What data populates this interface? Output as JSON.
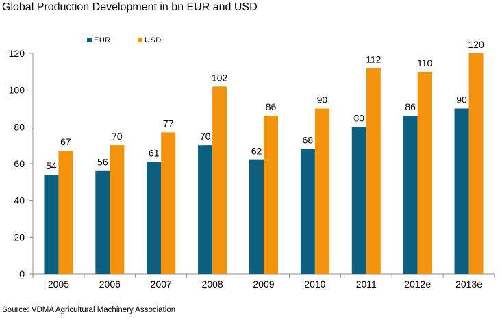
{
  "title": "Global Production Development in bn EUR and USD",
  "source": "Source: VDMA Agricultural Machinery Association",
  "colors": {
    "EUR": "#0d5f7f",
    "USD": "#f3930d",
    "axis": "#8c8c8c"
  },
  "chart_data": {
    "type": "bar",
    "categories": [
      "2005",
      "2006",
      "2007",
      "2008",
      "2009",
      "2010",
      "2011",
      "2012e",
      "2013e"
    ],
    "series": [
      {
        "name": "EUR",
        "values": [
          54,
          56,
          61,
          70,
          62,
          68,
          80,
          86,
          90
        ]
      },
      {
        "name": "USD",
        "values": [
          67,
          70,
          77,
          102,
          86,
          90,
          112,
          110,
          120
        ]
      }
    ],
    "ylim": [
      0,
      120
    ],
    "yticks": [
      0,
      20,
      40,
      60,
      80,
      100,
      120
    ],
    "grid": false,
    "legend": "top-left",
    "data_labels": true
  }
}
